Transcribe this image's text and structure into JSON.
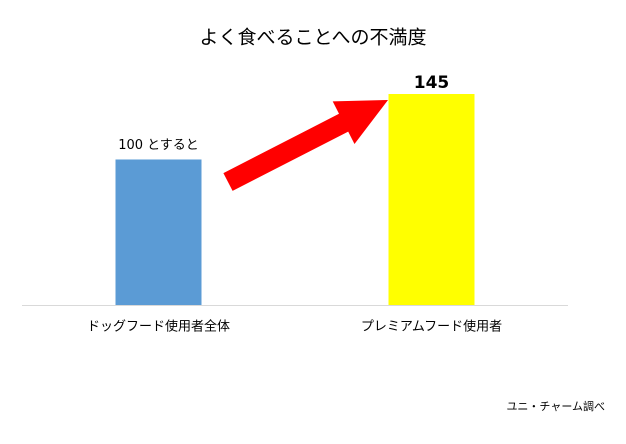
{
  "chart_data": {
    "type": "bar",
    "title": "よく食べることへの不満度",
    "categories": [
      "ドッグフード使用者全体",
      "プレミアムフード使用者"
    ],
    "values": [
      100,
      145
    ],
    "value_labels": [
      "100 とすると",
      "145"
    ],
    "colors": [
      "#5b9bd5",
      "#ffff00"
    ],
    "annotation": "ユニ・チャーム調べ"
  }
}
